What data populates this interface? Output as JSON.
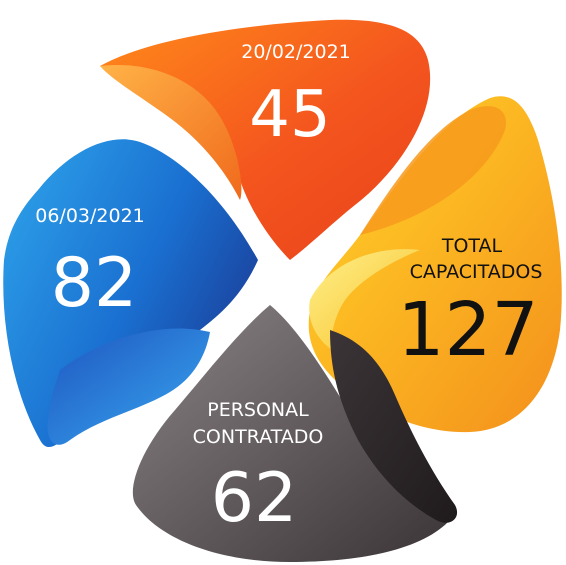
{
  "petals": {
    "orange": {
      "date": "20/02/2021",
      "value": "45",
      "color": "#f25a1c"
    },
    "blue": {
      "date": "06/03/2021",
      "value": "82",
      "color": "#1a7fd6"
    },
    "yellow": {
      "label_line1": "TOTAL",
      "label_line2": "CAPACITADOS",
      "value": "127",
      "color": "#f7a51e"
    },
    "gray": {
      "label_line1": "PERSONAL",
      "label_line2": "CONTRATADO",
      "value": "62",
      "color": "#5a5456"
    }
  }
}
